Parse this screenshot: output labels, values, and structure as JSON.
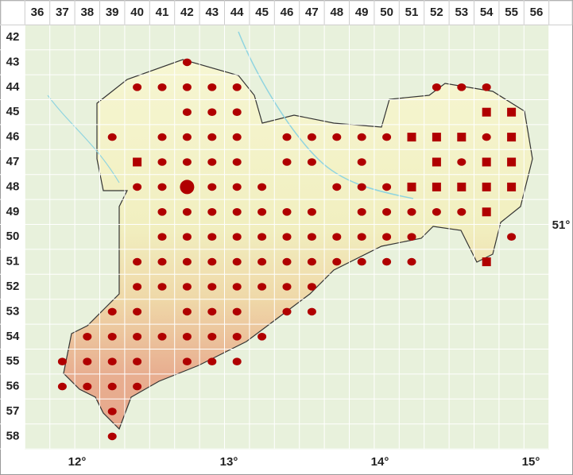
{
  "columns": [
    36,
    37,
    38,
    39,
    40,
    41,
    42,
    43,
    44,
    45,
    46,
    47,
    48,
    49,
    50,
    51,
    52,
    53,
    54,
    55,
    56
  ],
  "rows": [
    42,
    43,
    44,
    45,
    46,
    47,
    48,
    49,
    50,
    51,
    52,
    53,
    54,
    55,
    56,
    57,
    58
  ],
  "longitude_labels": [
    "12°",
    "13°",
    "14°",
    "15°"
  ],
  "latitude_labels": [
    "51°"
  ],
  "records": {
    "dot": [
      [
        42,
        43
      ],
      [
        40,
        44
      ],
      [
        41,
        44
      ],
      [
        42,
        44
      ],
      [
        43,
        44
      ],
      [
        44,
        44
      ],
      [
        52,
        44
      ],
      [
        53,
        44
      ],
      [
        54,
        44
      ],
      [
        42,
        45
      ],
      [
        43,
        45
      ],
      [
        44,
        45
      ],
      [
        39,
        46
      ],
      [
        41,
        46
      ],
      [
        42,
        46
      ],
      [
        43,
        46
      ],
      [
        44,
        46
      ],
      [
        46,
        46
      ],
      [
        47,
        46
      ],
      [
        48,
        46
      ],
      [
        49,
        46
      ],
      [
        50,
        46
      ],
      [
        54,
        46
      ],
      [
        41,
        47
      ],
      [
        42,
        47
      ],
      [
        43,
        47
      ],
      [
        44,
        47
      ],
      [
        46,
        47
      ],
      [
        47,
        47
      ],
      [
        49,
        47
      ],
      [
        53,
        47
      ],
      [
        40,
        48
      ],
      [
        41,
        48
      ],
      [
        43,
        48
      ],
      [
        44,
        48
      ],
      [
        45,
        48
      ],
      [
        48,
        48
      ],
      [
        49,
        48
      ],
      [
        50,
        48
      ],
      [
        41,
        49
      ],
      [
        42,
        49
      ],
      [
        43,
        49
      ],
      [
        44,
        49
      ],
      [
        45,
        49
      ],
      [
        46,
        49
      ],
      [
        47,
        49
      ],
      [
        49,
        49
      ],
      [
        50,
        49
      ],
      [
        51,
        49
      ],
      [
        52,
        49
      ],
      [
        53,
        49
      ],
      [
        41,
        50
      ],
      [
        42,
        50
      ],
      [
        43,
        50
      ],
      [
        44,
        50
      ],
      [
        45,
        50
      ],
      [
        46,
        50
      ],
      [
        47,
        50
      ],
      [
        48,
        50
      ],
      [
        49,
        50
      ],
      [
        50,
        50
      ],
      [
        51,
        50
      ],
      [
        55,
        50
      ],
      [
        40,
        51
      ],
      [
        41,
        51
      ],
      [
        42,
        51
      ],
      [
        43,
        51
      ],
      [
        44,
        51
      ],
      [
        45,
        51
      ],
      [
        46,
        51
      ],
      [
        47,
        51
      ],
      [
        48,
        51
      ],
      [
        49,
        51
      ],
      [
        50,
        51
      ],
      [
        51,
        51
      ],
      [
        40,
        52
      ],
      [
        41,
        52
      ],
      [
        42,
        52
      ],
      [
        43,
        52
      ],
      [
        44,
        52
      ],
      [
        45,
        52
      ],
      [
        46,
        52
      ],
      [
        47,
        52
      ],
      [
        39,
        53
      ],
      [
        40,
        53
      ],
      [
        42,
        53
      ],
      [
        43,
        53
      ],
      [
        44,
        53
      ],
      [
        46,
        53
      ],
      [
        47,
        53
      ],
      [
        38,
        54
      ],
      [
        39,
        54
      ],
      [
        40,
        54
      ],
      [
        41,
        54
      ],
      [
        42,
        54
      ],
      [
        43,
        54
      ],
      [
        44,
        54
      ],
      [
        45,
        54
      ],
      [
        37,
        55
      ],
      [
        38,
        55
      ],
      [
        39,
        55
      ],
      [
        40,
        55
      ],
      [
        42,
        55
      ],
      [
        43,
        55
      ],
      [
        44,
        55
      ],
      [
        37,
        56
      ],
      [
        38,
        56
      ],
      [
        39,
        56
      ],
      [
        40,
        56
      ],
      [
        39,
        57
      ],
      [
        39,
        58
      ]
    ],
    "square": [
      [
        54,
        45
      ],
      [
        55,
        45
      ],
      [
        51,
        46
      ],
      [
        52,
        46
      ],
      [
        53,
        46
      ],
      [
        55,
        46
      ],
      [
        40,
        47
      ],
      [
        52,
        47
      ],
      [
        54,
        47
      ],
      [
        55,
        47
      ],
      [
        51,
        48
      ],
      [
        52,
        48
      ],
      [
        53,
        48
      ],
      [
        54,
        48
      ],
      [
        55,
        48
      ],
      [
        54,
        49
      ],
      [
        54,
        51
      ]
    ],
    "large_dot": [
      [
        42,
        48
      ]
    ]
  }
}
